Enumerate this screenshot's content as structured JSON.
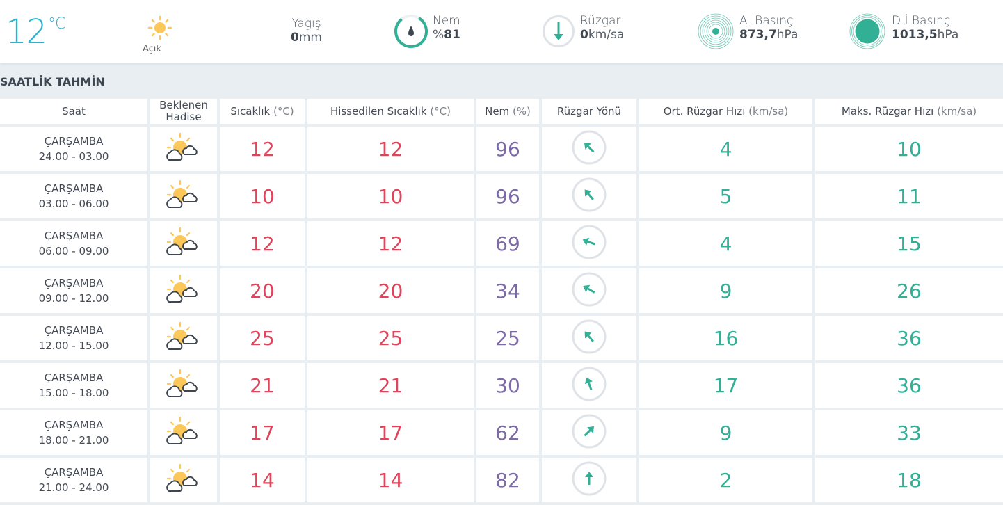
{
  "current": {
    "temp": "12",
    "unit": "°C",
    "condition": "Açık",
    "precip_label": "Yağış",
    "precip_value": "0",
    "precip_unit": "mm",
    "humidity_label": "Nem",
    "humidity_prefix": "%",
    "humidity_value": "81",
    "wind_label": "Rüzgar",
    "wind_value": "0",
    "wind_unit": "km/sa",
    "wind_direction_deg": 180,
    "apressure_label": "A. Basınç",
    "apressure_value": "873,7",
    "pressure_unit": "hPa",
    "dpressure_label": "D.İ.Basınç",
    "dpressure_value": "1013,5"
  },
  "colors": {
    "accent": "#29b3d3",
    "teal": "#31b096",
    "temperature": "#e2435b",
    "humidity": "#7c6aa6"
  },
  "section_title": "SAATLİK TAHMİN",
  "headers": {
    "saat": "Saat",
    "hadise1": "Beklenen",
    "hadise2": "Hadise",
    "sicaklik": "Sıcaklık",
    "sicaklik_unit": "(°C)",
    "hissedilen": "Hissedilen Sıcaklık",
    "hissedilen_unit": "(°C)",
    "nem": "Nem",
    "nem_unit": "(%)",
    "yon": "Rüzgar Yönü",
    "ort": "Ort. Rüzgar Hızı",
    "ort_unit": "(km/sa)",
    "maks": "Maks. Rüzgar Hızı",
    "maks_unit": "(km/sa)"
  },
  "rows": [
    {
      "day": "ÇARŞAMBA",
      "time": "24.00 - 03.00",
      "icon": "partly-cloudy",
      "temp": "12",
      "feels": "12",
      "hum": "96",
      "dir": 135,
      "avg": "4",
      "max": "10"
    },
    {
      "day": "ÇARŞAMBA",
      "time": "03.00 - 06.00",
      "icon": "partly-cloudy",
      "temp": "10",
      "feels": "10",
      "hum": "96",
      "dir": 140,
      "avg": "5",
      "max": "11"
    },
    {
      "day": "ÇARŞAMBA",
      "time": "06.00 - 09.00",
      "icon": "partly-cloudy",
      "temp": "12",
      "feels": "12",
      "hum": "69",
      "dir": 110,
      "avg": "4",
      "max": "15"
    },
    {
      "day": "ÇARŞAMBA",
      "time": "09.00 - 12.00",
      "icon": "partly-cloudy",
      "temp": "20",
      "feels": "20",
      "hum": "34",
      "dir": 120,
      "avg": "9",
      "max": "26"
    },
    {
      "day": "ÇARŞAMBA",
      "time": "12.00 - 15.00",
      "icon": "partly-cloudy",
      "temp": "25",
      "feels": "25",
      "hum": "25",
      "dir": 140,
      "avg": "16",
      "max": "36"
    },
    {
      "day": "ÇARŞAMBA",
      "time": "15.00 - 18.00",
      "icon": "partly-cloudy",
      "temp": "21",
      "feels": "21",
      "hum": "30",
      "dir": 160,
      "avg": "17",
      "max": "36"
    },
    {
      "day": "ÇARŞAMBA",
      "time": "18.00 - 21.00",
      "icon": "partly-cloudy",
      "temp": "17",
      "feels": "17",
      "hum": "62",
      "dir": 225,
      "avg": "9",
      "max": "33"
    },
    {
      "day": "ÇARŞAMBA",
      "time": "21.00 - 24.00",
      "icon": "partly-cloudy",
      "temp": "14",
      "feels": "14",
      "hum": "82",
      "dir": 180,
      "avg": "2",
      "max": "18"
    }
  ]
}
